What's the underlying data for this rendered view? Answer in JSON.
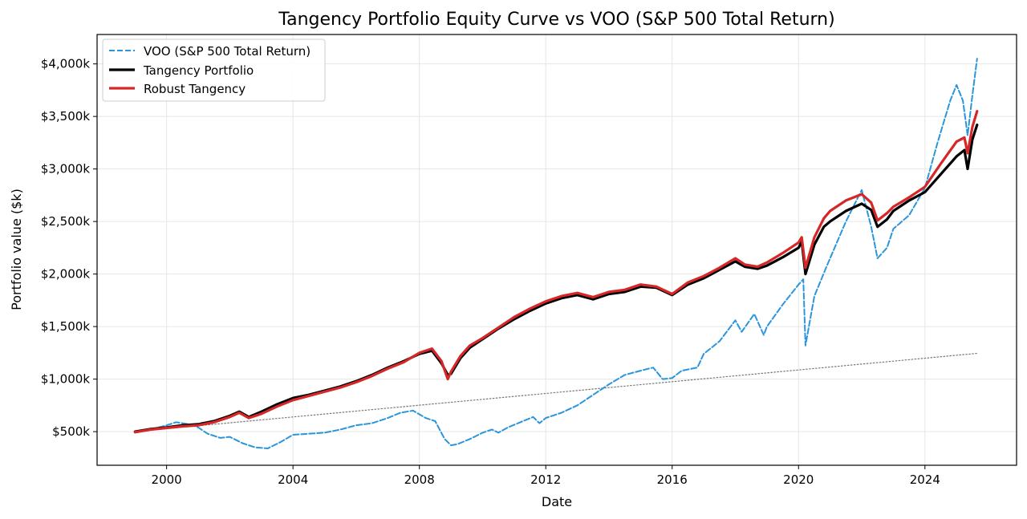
{
  "chart_data": {
    "type": "line",
    "title": "Tangency Portfolio Equity Curve vs VOO (S&P 500 Total Return)",
    "xlabel": "Date",
    "ylabel": "Portfolio value ($k)",
    "xlim": [
      1997.8,
      2026.9
    ],
    "ylim": [
      180,
      4280
    ],
    "x_ticks": [
      2000,
      2004,
      2008,
      2012,
      2016,
      2020,
      2024
    ],
    "x_tick_labels": [
      "2000",
      "2004",
      "2008",
      "2012",
      "2016",
      "2020",
      "2024"
    ],
    "y_ticks": [
      500,
      1000,
      1500,
      2000,
      2500,
      3000,
      3500,
      4000
    ],
    "y_tick_labels": [
      "$500k",
      "$1,000k",
      "$1,500k",
      "$2,000k",
      "$2,500k",
      "$3,000k",
      "$3,500k",
      "$4,000k"
    ],
    "grid": true,
    "legend_position": "top-left",
    "series": [
      {
        "name": "VOO (S&P 500 Total Return)",
        "color": "#2b95db",
        "style": "dashed",
        "x": [
          1999.0,
          1999.5,
          2000.0,
          2000.3,
          2000.7,
          2001.0,
          2001.3,
          2001.7,
          2002.0,
          2002.4,
          2002.8,
          2003.2,
          2003.6,
          2004.0,
          2004.5,
          2005.0,
          2005.5,
          2006.0,
          2006.5,
          2007.0,
          2007.4,
          2007.8,
          2008.2,
          2008.5,
          2008.8,
          2009.0,
          2009.2,
          2009.6,
          2010.0,
          2010.3,
          2010.5,
          2010.8,
          2011.2,
          2011.6,
          2011.8,
          2012.0,
          2012.5,
          2013.0,
          2013.5,
          2014.0,
          2014.5,
          2015.0,
          2015.4,
          2015.7,
          2016.0,
          2016.3,
          2016.8,
          2017.0,
          2017.5,
          2018.0,
          2018.2,
          2018.6,
          2018.9,
          2019.0,
          2019.5,
          2020.0,
          2020.15,
          2020.22,
          2020.5,
          2020.9,
          2021.0,
          2021.5,
          2022.0,
          2022.3,
          2022.5,
          2022.8,
          2023.0,
          2023.5,
          2024.0,
          2024.4,
          2024.8,
          2025.0,
          2025.2,
          2025.35,
          2025.5,
          2025.65
        ],
        "values": [
          490,
          520,
          560,
          590,
          570,
          540,
          480,
          440,
          450,
          390,
          350,
          340,
          400,
          470,
          480,
          490,
          520,
          560,
          580,
          630,
          680,
          700,
          630,
          600,
          430,
          370,
          380,
          430,
          490,
          520,
          490,
          540,
          590,
          640,
          580,
          630,
          680,
          750,
          850,
          950,
          1040,
          1080,
          1110,
          1000,
          1010,
          1080,
          1110,
          1240,
          1360,
          1560,
          1450,
          1620,
          1420,
          1500,
          1710,
          1900,
          1950,
          1320,
          1790,
          2080,
          2150,
          2500,
          2800,
          2450,
          2150,
          2250,
          2430,
          2560,
          2820,
          3250,
          3650,
          3800,
          3650,
          3320,
          3700,
          4050
        ]
      },
      {
        "name": "Tangency Portfolio",
        "color": "#000000",
        "style": "solid",
        "x": [
          1999.0,
          1999.5,
          2000.0,
          2000.5,
          2001.0,
          2001.5,
          2002.0,
          2002.3,
          2002.6,
          2003.0,
          2003.5,
          2004.0,
          2004.5,
          2005.0,
          2005.5,
          2006.0,
          2006.5,
          2007.0,
          2007.5,
          2008.0,
          2008.4,
          2008.7,
          2008.9,
          2009.0,
          2009.3,
          2009.6,
          2010.0,
          2010.5,
          2011.0,
          2011.5,
          2012.0,
          2012.5,
          2013.0,
          2013.5,
          2014.0,
          2014.5,
          2015.0,
          2015.5,
          2016.0,
          2016.5,
          2017.0,
          2017.5,
          2018.0,
          2018.3,
          2018.7,
          2019.0,
          2019.5,
          2020.0,
          2020.1,
          2020.22,
          2020.5,
          2020.8,
          2021.0,
          2021.5,
          2022.0,
          2022.3,
          2022.5,
          2022.8,
          2023.0,
          2023.5,
          2024.0,
          2024.5,
          2025.0,
          2025.25,
          2025.35,
          2025.5,
          2025.65
        ],
        "values": [
          500,
          525,
          540,
          560,
          570,
          600,
          650,
          690,
          640,
          690,
          760,
          820,
          850,
          890,
          930,
          980,
          1040,
          1110,
          1170,
          1240,
          1270,
          1150,
          1040,
          1050,
          1200,
          1300,
          1380,
          1480,
          1570,
          1650,
          1720,
          1770,
          1800,
          1760,
          1810,
          1830,
          1880,
          1870,
          1800,
          1900,
          1960,
          2040,
          2120,
          2070,
          2050,
          2080,
          2160,
          2250,
          2310,
          2000,
          2280,
          2450,
          2500,
          2600,
          2670,
          2610,
          2450,
          2520,
          2600,
          2700,
          2780,
          2950,
          3120,
          3180,
          3000,
          3280,
          3420
        ]
      },
      {
        "name": "Robust Tangency",
        "color": "#d62728",
        "style": "solid",
        "x": [
          1999.0,
          1999.5,
          2000.0,
          2000.5,
          2001.0,
          2001.5,
          2002.0,
          2002.3,
          2002.6,
          2003.0,
          2003.5,
          2004.0,
          2004.5,
          2005.0,
          2005.5,
          2006.0,
          2006.5,
          2007.0,
          2007.5,
          2008.0,
          2008.4,
          2008.7,
          2008.9,
          2009.0,
          2009.3,
          2009.6,
          2010.0,
          2010.5,
          2011.0,
          2011.5,
          2012.0,
          2012.5,
          2013.0,
          2013.5,
          2014.0,
          2014.5,
          2015.0,
          2015.5,
          2016.0,
          2016.5,
          2017.0,
          2017.5,
          2018.0,
          2018.3,
          2018.7,
          2019.0,
          2019.5,
          2020.0,
          2020.1,
          2020.22,
          2020.5,
          2020.8,
          2021.0,
          2021.5,
          2022.0,
          2022.3,
          2022.5,
          2022.8,
          2023.0,
          2023.5,
          2024.0,
          2024.5,
          2025.0,
          2025.25,
          2025.35,
          2025.5,
          2025.65
        ],
        "values": [
          495,
          520,
          535,
          550,
          560,
          590,
          640,
          680,
          630,
          670,
          740,
          800,
          840,
          880,
          920,
          970,
          1030,
          1100,
          1160,
          1250,
          1290,
          1170,
          1000,
          1070,
          1220,
          1320,
          1390,
          1490,
          1590,
          1670,
          1740,
          1790,
          1820,
          1780,
          1830,
          1850,
          1900,
          1880,
          1810,
          1920,
          1980,
          2060,
          2150,
          2090,
          2070,
          2110,
          2200,
          2300,
          2350,
          2060,
          2350,
          2530,
          2600,
          2700,
          2760,
          2680,
          2510,
          2580,
          2640,
          2730,
          2830,
          3050,
          3260,
          3300,
          3150,
          3400,
          3550
        ]
      },
      {
        "name": "",
        "color": "#777777",
        "style": "dotted",
        "x": [
          1999.0,
          2025.65
        ],
        "values": [
          500,
          1245
        ]
      }
    ]
  }
}
